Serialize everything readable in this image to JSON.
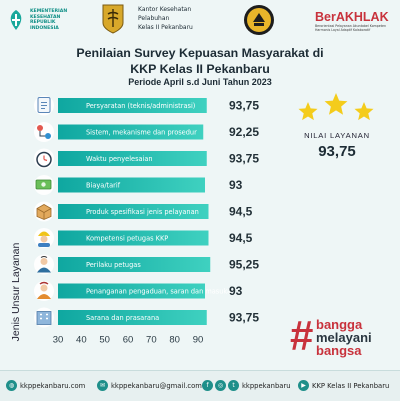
{
  "header": {
    "kemenkes_lines": [
      "KEMENTERIAN",
      "KESEHATAN",
      "REPUBLIK",
      "INDONESIA"
    ],
    "kkp_name_lines": [
      "Kantor Kesehatan",
      "Pelabuhan",
      "Kelas II Pekanbaru"
    ],
    "berakhlak": "BerAKHLAK",
    "berakhlak_sub": "Berorientasi Pelayanan Akuntabel Kompeten Harmonis Loyal Adaptif Kolaboratif"
  },
  "title": {
    "line1": "Penilaian Survey Kepuasan Masyarakat di",
    "line2": "KKP Kelas II Pekanbaru",
    "line3": "Periode April s.d Juni Tahun 2023"
  },
  "summary": {
    "label": "NILAI LAYANAN",
    "value": "93,75",
    "stars": 3
  },
  "chart_data": {
    "type": "bar",
    "orientation": "horizontal",
    "ylabel": "Jenis Unsur Layanan",
    "xlabel": "",
    "xlim": [
      30,
      90
    ],
    "xticks": [
      "30",
      "40",
      "50",
      "60",
      "70",
      "80",
      "90"
    ],
    "categories": [
      "Persyaratan (teknis/administrasi)",
      "Sistem, mekanisme dan prosedur",
      "Waktu penyelesaian",
      "Biaya/tarif",
      "Produk spesifikasi jenis pelayanan",
      "Kompetensi petugas KKP",
      "Perilaku petugas",
      "Penanganan pengaduan, saran dan masukan",
      "Sarana dan prasarana"
    ],
    "values": [
      93.75,
      92.25,
      93.75,
      93,
      94.5,
      94.5,
      95.25,
      93,
      93.75
    ],
    "value_labels": [
      "93,75",
      "92,25",
      "93,75",
      "93",
      "94,5",
      "94,5",
      "95,25",
      "93",
      "93,75"
    ],
    "icons": [
      "document-icon",
      "flowchart-icon",
      "stopwatch-icon",
      "money-icon",
      "box-icon",
      "worker-icon",
      "service-staff-icon",
      "complaint-icon",
      "building-icon"
    ],
    "colors": {
      "bar_start": "#0fa7a0",
      "bar_end": "#3fd1c0"
    },
    "grid": false,
    "legend": "none"
  },
  "campaign": {
    "hash": "#",
    "words": [
      "bangga",
      "melayani",
      "bangsa"
    ]
  },
  "footer": {
    "website": "kkppekanbaru.com",
    "email": "kkppekanbaru@gmail.com",
    "social": "kkppekanbaru",
    "youtube": "KKP Kelas II Pekanbaru"
  },
  "colors": {
    "accent": "#1f8f8a",
    "brand_red": "#c8323c",
    "star": "#f4cc1b"
  }
}
